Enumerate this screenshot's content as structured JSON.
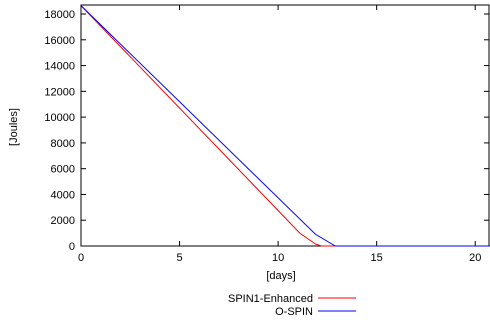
{
  "chart_data": {
    "type": "line",
    "title": "",
    "xlabel": "[days]",
    "ylabel": "[Joules]",
    "xlim": [
      0,
      20.75
    ],
    "ylim": [
      0,
      18700
    ],
    "x_ticks": [
      0,
      5,
      10,
      15,
      20
    ],
    "y_ticks": [
      0,
      2000,
      4000,
      6000,
      8000,
      10000,
      12000,
      14000,
      16000,
      18000
    ],
    "grid": false,
    "legend_position": "bottom-center",
    "series": [
      {
        "name": "SPIN1-Enhanced",
        "color": "#ff0000",
        "points": [
          [
            0,
            18650
          ],
          [
            11.1,
            1000
          ],
          [
            11.9,
            150
          ],
          [
            12.2,
            0
          ],
          [
            20.75,
            0
          ]
        ]
      },
      {
        "name": "O-SPIN",
        "color": "#0000ff",
        "points": [
          [
            0,
            18650
          ],
          [
            11.9,
            900
          ],
          [
            12.9,
            0
          ],
          [
            20.75,
            0
          ]
        ]
      }
    ]
  }
}
